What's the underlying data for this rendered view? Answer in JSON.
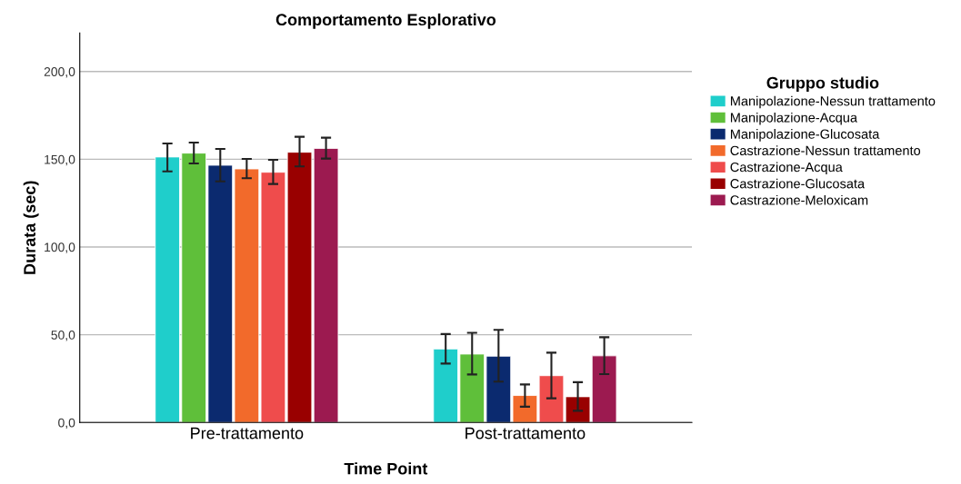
{
  "chart_data": {
    "type": "bar",
    "title": "Comportamento Esplorativo",
    "xlabel": "Time Point",
    "ylabel": "Durata (sec)",
    "legend_title": "Gruppo studio",
    "legend": "right",
    "grid": "y",
    "categories": [
      "Pre-trattamento",
      "Post-trattamento"
    ],
    "ylim": [
      0,
      222
    ],
    "yticks": [
      {
        "value": 0,
        "label": "0,0"
      },
      {
        "value": 50,
        "label": "50,0"
      },
      {
        "value": 100,
        "label": "100,0"
      },
      {
        "value": 150,
        "label": "150,0"
      },
      {
        "value": 200,
        "label": "200,0"
      }
    ],
    "series": [
      {
        "name": "Manipolazione-Nessun trattamento",
        "color": "#1fcecb",
        "values": [
          151.3,
          41.9
        ],
        "errors": [
          [
            143.1,
            159.0
          ],
          [
            33.6,
            50.4
          ]
        ]
      },
      {
        "name": "Manipolazione-Acqua",
        "color": "#5fbf3a",
        "values": [
          153.5,
          39.0
        ],
        "errors": [
          [
            147.6,
            159.5
          ],
          [
            27.4,
            51.1
          ]
        ]
      },
      {
        "name": "Manipolazione-Glucosata",
        "color": "#0b2a6f",
        "values": [
          146.6,
          37.8
        ],
        "errors": [
          [
            137.4,
            155.9
          ],
          [
            23.3,
            52.8
          ]
        ]
      },
      {
        "name": "Castrazione-Nessun trattamento",
        "color": "#f26a2b",
        "values": [
          144.5,
          15.4
        ],
        "errors": [
          [
            139.2,
            150.2
          ],
          [
            9.0,
            21.7
          ]
        ]
      },
      {
        "name": "Castrazione-Acqua",
        "color": "#ef4c4c",
        "values": [
          142.6,
          26.7
        ],
        "errors": [
          [
            135.9,
            149.7
          ],
          [
            13.8,
            39.8
          ]
        ]
      },
      {
        "name": "Castrazione-Glucosata",
        "color": "#990000",
        "values": [
          154.0,
          14.7
        ],
        "errors": [
          [
            145.9,
            162.8
          ],
          [
            6.7,
            23.0
          ]
        ]
      },
      {
        "name": "Castrazione-Meloxicam",
        "color": "#9c1a50",
        "values": [
          156.2,
          38.0
        ],
        "errors": [
          [
            150.4,
            162.3
          ],
          [
            27.6,
            48.6
          ]
        ]
      }
    ]
  }
}
